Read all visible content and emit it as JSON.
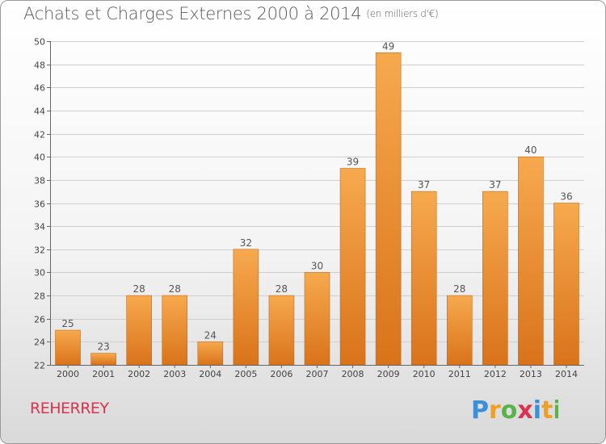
{
  "title": "Achats et Charges Externes 2000 à 2014",
  "unit": "(en milliers d'€)",
  "commune": "REHERREY",
  "logo_text": "Proxiti",
  "colors": {
    "bar_light": "#f7a94e",
    "bar_dark": "#d9731a",
    "grid": "#cfcfcf",
    "commune": "#d9334f"
  },
  "chart_data": {
    "type": "bar",
    "title": "Achats et Charges Externes 2000 à 2014",
    "subtitle": "(en milliers d'€)",
    "categories": [
      "2000",
      "2001",
      "2002",
      "2003",
      "2004",
      "2005",
      "2006",
      "2007",
      "2008",
      "2009",
      "2010",
      "2011",
      "2012",
      "2013",
      "2014"
    ],
    "values": [
      25,
      23,
      28,
      28,
      24,
      32,
      28,
      30,
      39,
      49,
      37,
      28,
      37,
      40,
      36
    ],
    "ylim": [
      22,
      50
    ],
    "yticks": [
      22,
      24,
      26,
      28,
      30,
      32,
      34,
      36,
      38,
      40,
      42,
      44,
      46,
      48,
      50
    ],
    "grid": true,
    "xlabel": "",
    "ylabel": ""
  }
}
